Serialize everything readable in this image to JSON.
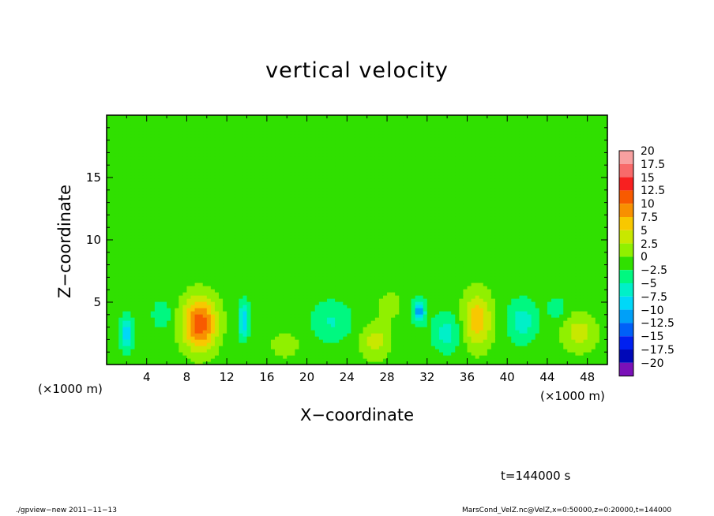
{
  "chart_data": {
    "type": "heatmap",
    "title": "vertical velocity",
    "xlabel": "X−coordinate",
    "ylabel": "Z−coordinate",
    "x_unit": "(×1000 m)",
    "y_unit": "(×1000 m)",
    "xlim": [
      0,
      50
    ],
    "ylim": [
      0,
      20
    ],
    "x_ticks": [
      "4",
      "8",
      "12",
      "16",
      "20",
      "24",
      "28",
      "32",
      "36",
      "40",
      "44",
      "48"
    ],
    "y_ticks": [
      "5",
      "10",
      "15"
    ],
    "x_tick_values": [
      4,
      8,
      12,
      16,
      20,
      24,
      28,
      32,
      36,
      40,
      44,
      48
    ],
    "y_tick_values": [
      5,
      10,
      15
    ],
    "background_value": 0,
    "features": [
      {
        "x": 9.3,
        "z": 3.3,
        "value": 13,
        "sx": 1.7,
        "sz": 2.1
      },
      {
        "x": 37.0,
        "z": 3.6,
        "value": 8,
        "sx": 1.5,
        "sz": 2.2
      },
      {
        "x": 26.8,
        "z": 1.9,
        "value": 5,
        "sx": 1.5,
        "sz": 1.4
      },
      {
        "x": 47.2,
        "z": 2.6,
        "value": 5,
        "sx": 1.7,
        "sz": 1.5
      },
      {
        "x": 17.8,
        "z": 1.6,
        "value": 2.5,
        "sx": 1.6,
        "sz": 1.2
      },
      {
        "x": 28.3,
        "z": 4.8,
        "value": 2.5,
        "sx": 1.3,
        "sz": 1.2
      },
      {
        "x": 2.0,
        "z": 2.5,
        "value": -8,
        "sx": 0.6,
        "sz": 1.3
      },
      {
        "x": 13.7,
        "z": 3.6,
        "value": -9,
        "sx": 0.5,
        "sz": 1.4
      },
      {
        "x": 31.2,
        "z": 4.3,
        "value": -10,
        "sx": 0.6,
        "sz": 0.9
      },
      {
        "x": 34.0,
        "z": 2.6,
        "value": -5,
        "sx": 1.5,
        "sz": 1.5
      },
      {
        "x": 41.5,
        "z": 3.5,
        "value": -5,
        "sx": 1.5,
        "sz": 1.7
      },
      {
        "x": 5.5,
        "z": 4.0,
        "value": -3,
        "sx": 1.0,
        "sz": 1.2
      },
      {
        "x": 22.5,
        "z": 3.5,
        "value": -4,
        "sx": 2.0,
        "sz": 1.6
      },
      {
        "x": 45.0,
        "z": 4.5,
        "value": -3,
        "sx": 1.0,
        "sz": 1.0
      }
    ],
    "colorbar": {
      "levels": [
        "20",
        "17.5",
        "15",
        "12.5",
        "10",
        "7.5",
        "5",
        "2.5",
        "0",
        "−2.5",
        "−5",
        "−7.5",
        "−10",
        "−12.5",
        "−15",
        "−17.5",
        "−20"
      ],
      "colors": [
        "#f8a0a0",
        "#f86a6a",
        "#f82020",
        "#f85a00",
        "#f89000",
        "#f8c800",
        "#c8e800",
        "#90f000",
        "#30e000",
        "#00f880",
        "#00f0c8",
        "#00d8f8",
        "#00a0f8",
        "#0060f8",
        "#0020f0",
        "#0008b8",
        "#7a10b8"
      ]
    }
  },
  "footer": {
    "left": "./gpview−new   2011−11−13",
    "right": "MarsCond_VelZ.nc@VelZ,x=0:50000,z=0:20000,t=144000"
  },
  "time_label": "t=144000 s"
}
